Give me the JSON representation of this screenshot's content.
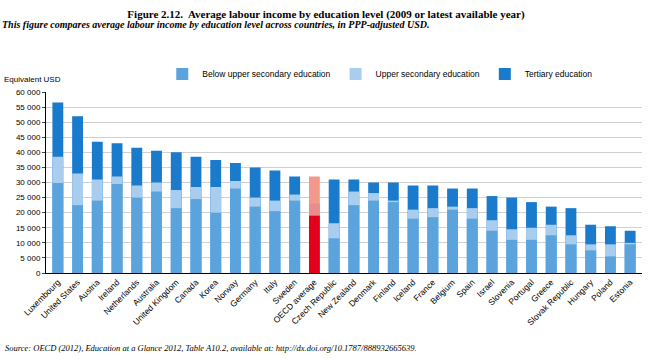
{
  "chart_data": {
    "type": "bar",
    "title": "Figure 2.12.  Average labour income by education level (2009 or latest available year)",
    "subtitle": "This figure compares average labour income by education level across countries, in PPP-adjusted USD.",
    "y_label": "Equivalent USD",
    "source": "Source: OECD (2012), Education at a Glance 2012, Table A10.2, available at: http://dx.doi.org/10.1787/888932665639.",
    "categories": [
      "Luxembourg",
      "United States",
      "Austria",
      "Ireland",
      "Netherlands",
      "Australia",
      "United Kingdom",
      "Canada",
      "Korea",
      "Norway",
      "Germany",
      "Italy",
      "Sweden",
      "OECD average",
      "Czech Republic",
      "New Zealand",
      "Denmark",
      "Finland",
      "Iceland",
      "France",
      "Belgium",
      "Spain",
      "Israel",
      "Slovenia",
      "Portugal",
      "Greece",
      "Slovak Republic",
      "Hungary",
      "Poland",
      "Estonia"
    ],
    "series": [
      {
        "name": "Below upper secondary education",
        "color": "#5aa3dc",
        "colors": [
          "#5aa3dc",
          "#5aa3dc",
          "#5aa3dc",
          "#5aa3dc",
          "#5aa3dc",
          "#5aa3dc",
          "#5aa3dc",
          "#5aa3dc",
          "#5aa3dc",
          "#5aa3dc",
          "#5aa3dc",
          "#5aa3dc",
          "#5aa3dc",
          "#e3001b",
          "#5aa3dc",
          "#5aa3dc",
          "#5aa3dc",
          "#5aa3dc",
          "#5aa3dc",
          "#5aa3dc",
          "#5aa3dc",
          "#5aa3dc",
          "#5aa3dc",
          "#5aa3dc",
          "#5aa3dc",
          "#5aa3dc",
          "#5aa3dc",
          "#5aa3dc",
          "#5aa3dc",
          "#5aa3dc"
        ],
        "values": [
          29800,
          22500,
          24000,
          29500,
          25000,
          27000,
          21500,
          24500,
          20000,
          28000,
          22000,
          20500,
          24000,
          19000,
          11500,
          22500,
          24000,
          23500,
          18000,
          18500,
          21000,
          18000,
          14000,
          11000,
          11000,
          12500,
          9500,
          7500,
          5500,
          9500
        ]
      },
      {
        "name": "Upper secondary education",
        "color": "#a9cdee",
        "colors": [
          "#a9cdee",
          "#a9cdee",
          "#a9cdee",
          "#a9cdee",
          "#a9cdee",
          "#a9cdee",
          "#a9cdee",
          "#a9cdee",
          "#a9cdee",
          "#a9cdee",
          "#a9cdee",
          "#a9cdee",
          "#a9cdee",
          "#e88c8c",
          "#a9cdee",
          "#a9cdee",
          "#a9cdee",
          "#a9cdee",
          "#a9cdee",
          "#a9cdee",
          "#a9cdee",
          "#a9cdee",
          "#a9cdee",
          "#a9cdee",
          "#a9cdee",
          "#a9cdee",
          "#a9cdee",
          "#a9cdee",
          "#a9cdee",
          "#a9cdee"
        ],
        "values": [
          38500,
          33000,
          31000,
          32000,
          29000,
          30000,
          27500,
          28500,
          28500,
          30500,
          25000,
          24000,
          26000,
          23000,
          16500,
          27000,
          26500,
          24000,
          21000,
          21500,
          22000,
          21500,
          17500,
          14500,
          15000,
          16000,
          12500,
          9500,
          9500,
          10000
        ]
      },
      {
        "name": "Tertiary education",
        "color": "#1a7acc",
        "colors": [
          "#1a7acc",
          "#1a7acc",
          "#1a7acc",
          "#1a7acc",
          "#1a7acc",
          "#1a7acc",
          "#1a7acc",
          "#1a7acc",
          "#1a7acc",
          "#1a7acc",
          "#1a7acc",
          "#1a7acc",
          "#1a7acc",
          "#f2998b",
          "#1a7acc",
          "#1a7acc",
          "#1a7acc",
          "#1a7acc",
          "#1a7acc",
          "#1a7acc",
          "#1a7acc",
          "#1a7acc",
          "#1a7acc",
          "#1a7acc",
          "#1a7acc",
          "#1a7acc",
          "#1a7acc",
          "#1a7acc",
          "#1a7acc",
          "#1a7acc"
        ],
        "values": [
          56500,
          52000,
          43500,
          43000,
          41500,
          40500,
          40000,
          38500,
          37500,
          36500,
          35000,
          34000,
          32000,
          32000,
          31000,
          31000,
          30000,
          30000,
          29000,
          29000,
          28000,
          28000,
          25500,
          25000,
          23500,
          22000,
          21500,
          16000,
          15500,
          14000
        ]
      }
    ],
    "stacked": false,
    "ylim": [
      0,
      60000
    ],
    "yticks": [
      0,
      {
        "value": 5000,
        "label": "5 000"
      },
      {
        "value": 10000,
        "label": "10 000"
      },
      {
        "value": 15000,
        "label": "15 000"
      },
      {
        "value": 20000,
        "label": "20 000"
      },
      {
        "value": 25000,
        "label": "25 000"
      },
      {
        "value": 30000,
        "label": "30 000"
      },
      {
        "value": 35000,
        "label": "35 000"
      },
      {
        "value": 40000,
        "label": "40 000"
      },
      {
        "value": 45000,
        "label": "45 000"
      },
      {
        "value": 50000,
        "label": "50 000"
      },
      {
        "value": 55000,
        "label": "55 000"
      },
      {
        "value": 60000,
        "label": "60 000"
      }
    ],
    "grid": true,
    "legend": "top"
  }
}
